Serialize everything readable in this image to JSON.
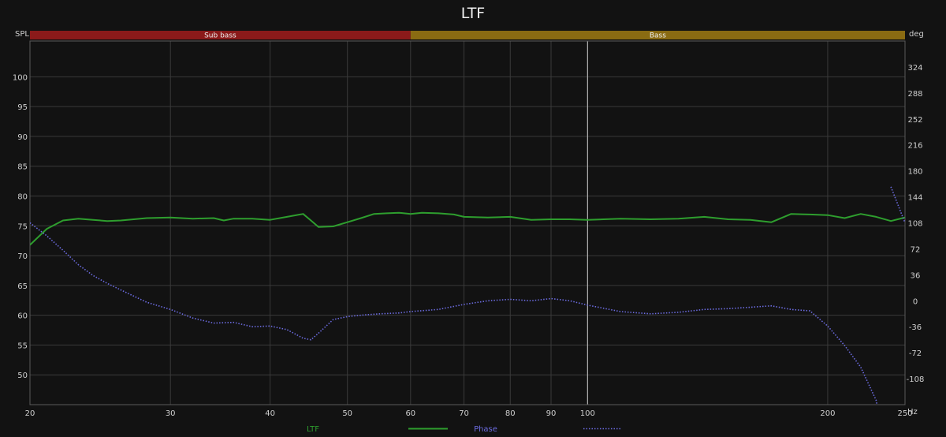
{
  "chart_data": {
    "type": "line",
    "title": "LTF",
    "ylabel": "SPL",
    "y2label": "deg",
    "xunit": "Hz",
    "x_scale": "log",
    "xlim": [
      20,
      250
    ],
    "ylim": [
      45,
      106
    ],
    "y2lim": [
      -144,
      360
    ],
    "x_ticks": [
      20,
      30,
      40,
      50,
      60,
      70,
      80,
      90,
      100,
      200,
      250
    ],
    "y_ticks": [
      50,
      55,
      60,
      65,
      70,
      75,
      80,
      85,
      90,
      95,
      100
    ],
    "y2_ticks": [
      -108,
      -72,
      -36,
      0,
      36,
      72,
      108,
      144,
      180,
      216,
      252,
      288,
      324
    ],
    "grid": true,
    "marker_line_x": 100,
    "bands": [
      {
        "label": "Sub bass",
        "from": 20,
        "to": 60,
        "color": "#8b1a1a"
      },
      {
        "label": "Bass",
        "from": 60,
        "to": 250,
        "color": "#8a6b12"
      }
    ],
    "series": [
      {
        "name": "LTF",
        "axis": "left",
        "color": "#2e9e2e",
        "style": "solid",
        "x": [
          20,
          21,
          22,
          23,
          24,
          25,
          26,
          28,
          30,
          32,
          34,
          35,
          36,
          38,
          40,
          42,
          44,
          45,
          46,
          48,
          50,
          52,
          54,
          56,
          58,
          60,
          62,
          65,
          68,
          70,
          75,
          80,
          85,
          90,
          95,
          100,
          110,
          120,
          130,
          140,
          150,
          160,
          170,
          180,
          190,
          200,
          210,
          220,
          230,
          240,
          250
        ],
        "y": [
          71.8,
          74.5,
          75.9,
          76.2,
          76.0,
          75.8,
          75.9,
          76.3,
          76.4,
          76.2,
          76.3,
          75.9,
          76.2,
          76.2,
          76.0,
          76.5,
          77.0,
          75.9,
          74.8,
          74.9,
          75.6,
          76.3,
          77.0,
          77.1,
          77.2,
          77.0,
          77.2,
          77.1,
          76.9,
          76.5,
          76.4,
          76.5,
          76.0,
          76.1,
          76.1,
          76.0,
          76.2,
          76.1,
          76.2,
          76.5,
          76.1,
          76.0,
          75.6,
          77.0,
          76.9,
          76.8,
          76.3,
          77.0,
          76.5,
          75.8,
          76.4
        ]
      },
      {
        "name": "Phase",
        "axis": "right",
        "color": "#6b6bdf",
        "style": "dotted",
        "x": [
          20,
          21,
          22,
          23,
          24,
          25,
          26,
          28,
          30,
          32,
          34,
          36,
          38,
          40,
          42,
          44,
          45,
          46,
          48,
          50,
          52,
          55,
          58,
          60,
          65,
          70,
          75,
          80,
          85,
          90,
          95,
          100,
          110,
          120,
          130,
          140,
          150,
          160,
          170,
          180,
          190,
          200,
          210,
          220,
          230,
          232,
          240,
          250
        ],
        "y": [
          108,
          90,
          70,
          50,
          35,
          24,
          15,
          -2,
          -12,
          -24,
          -31,
          -30,
          -36,
          -35,
          -40,
          -52,
          -54,
          -45,
          -26,
          -22,
          -20,
          -18,
          -17,
          -15,
          -12,
          -5,
          0,
          2,
          0,
          3,
          0,
          -6,
          -15,
          -18,
          -16,
          -12,
          -11,
          -9,
          -7,
          -12,
          -14,
          -35,
          -62,
          -92,
          -138,
          -160,
          158,
          108
        ]
      }
    ]
  }
}
